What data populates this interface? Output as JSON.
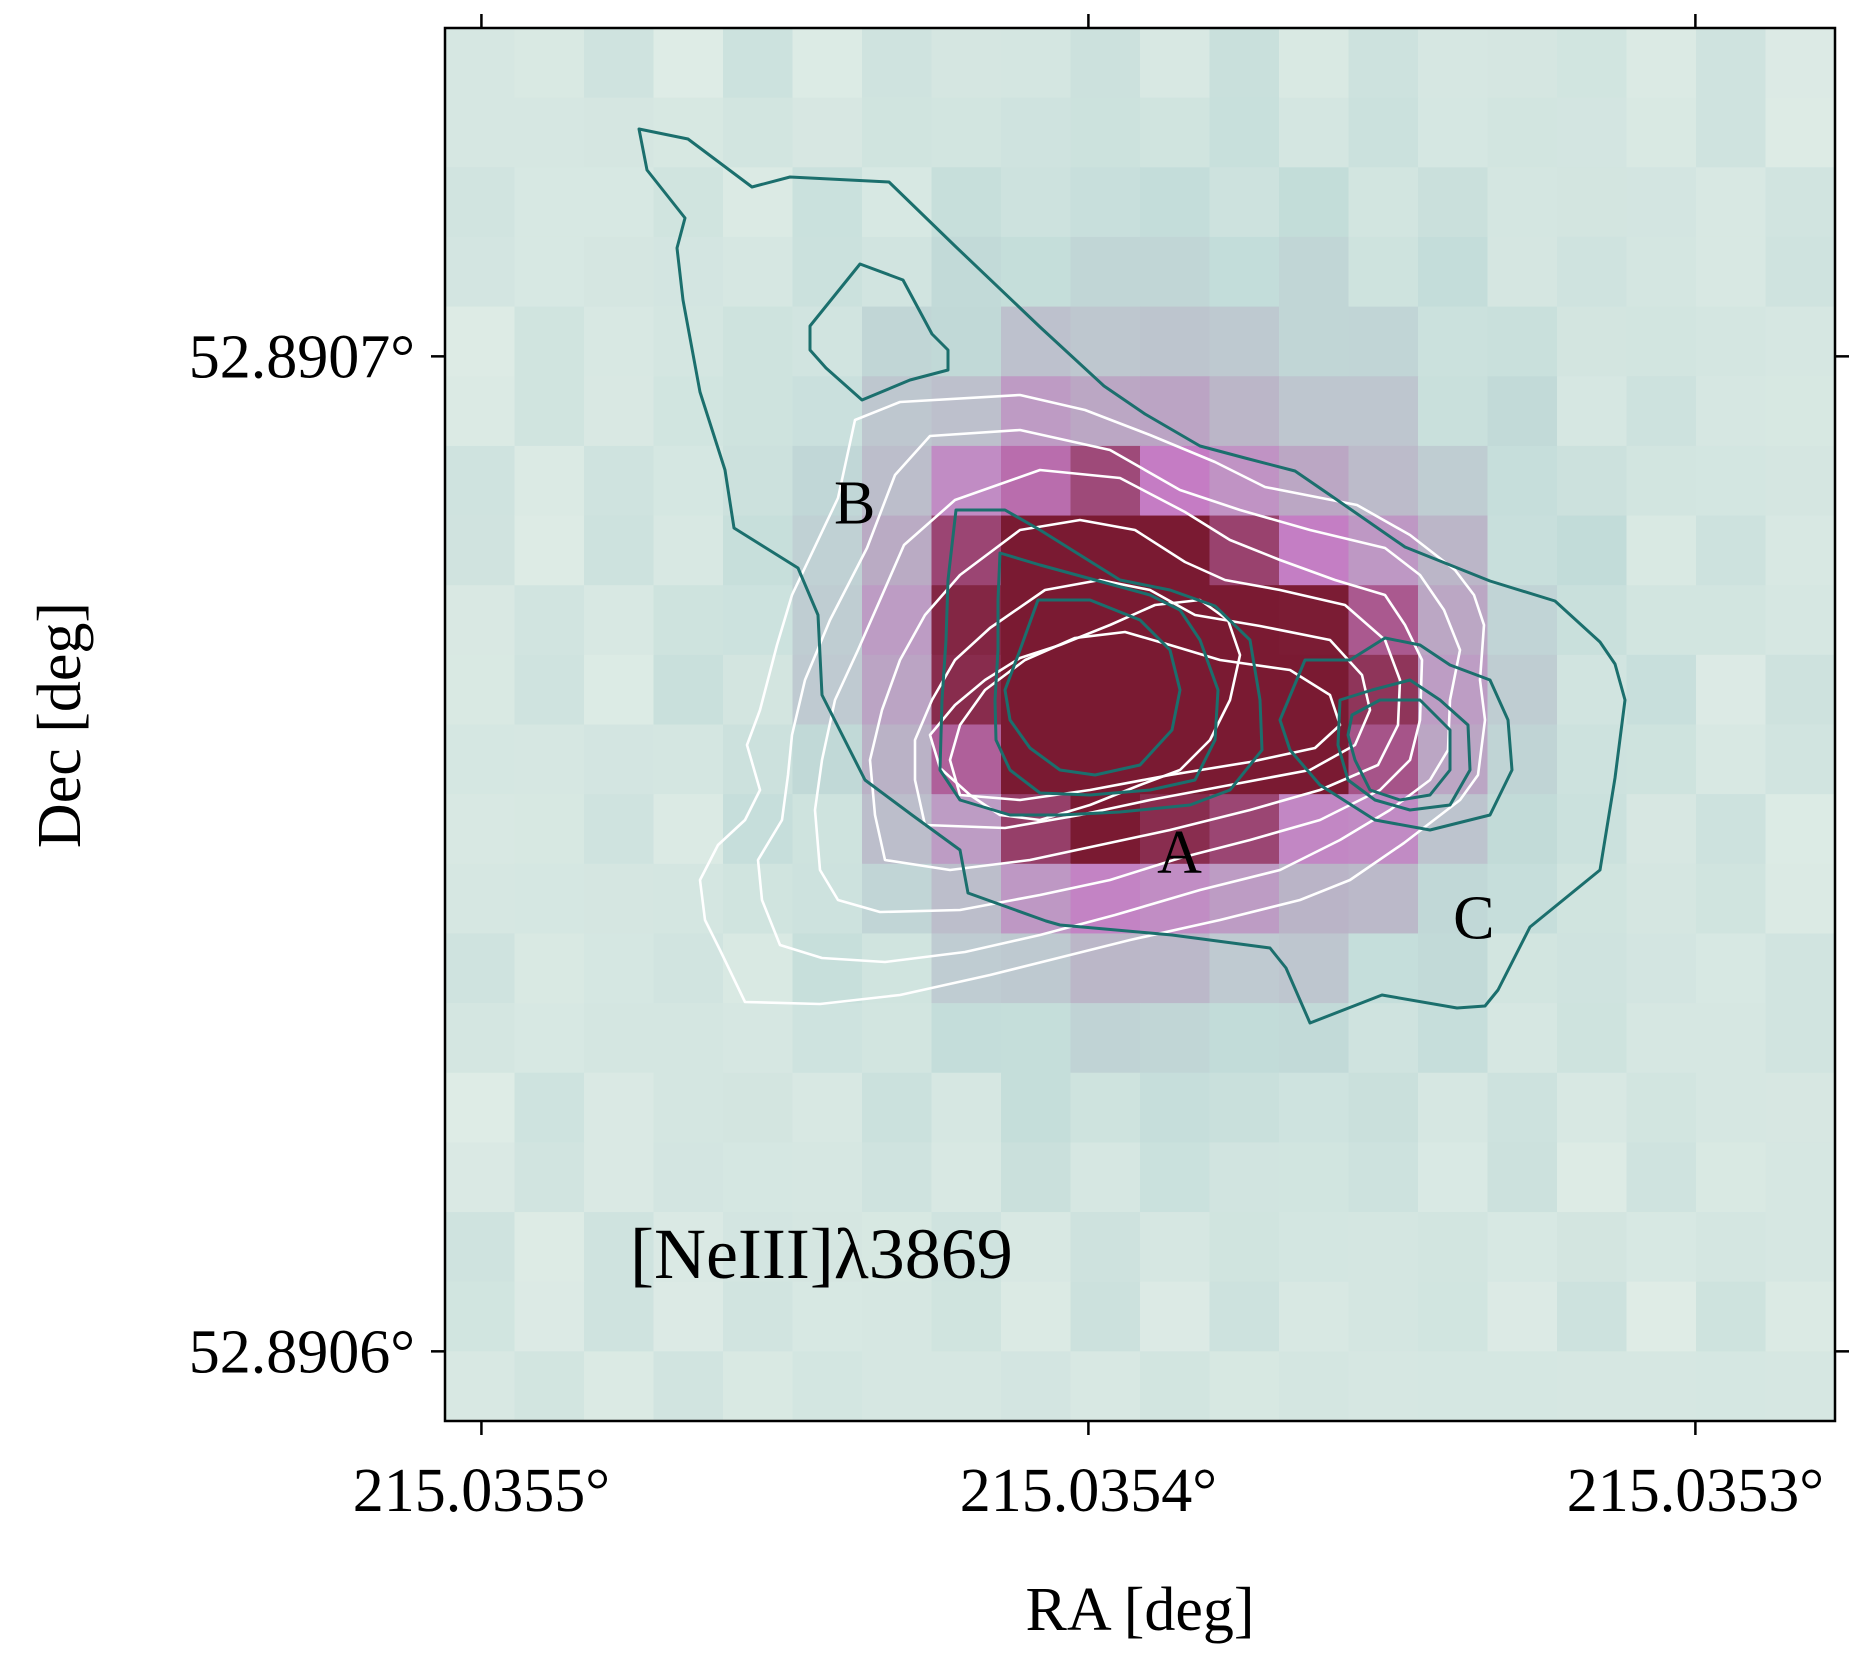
{
  "chart_data": {
    "type": "heatmap",
    "title": "",
    "panel_label": "[NeIII]λ3869",
    "xlabel": "RA [deg]",
    "ylabel": "Dec [deg]",
    "x_ticks": [
      {
        "value": 215.0355,
        "label": "215.0355°"
      },
      {
        "value": 215.0354,
        "label": "215.0354°"
      },
      {
        "value": 215.0353,
        "label": "215.0353°"
      }
    ],
    "y_ticks": [
      {
        "value": 52.8907,
        "label": "52.8907°"
      },
      {
        "value": 52.8906,
        "label": "52.8906°"
      }
    ],
    "xlim": [
      215.035506,
      215.035277
    ],
    "ylim": [
      52.890593,
      52.890733
    ],
    "x_inverted": true,
    "grid": false,
    "colormap": [
      "#e8f1ea",
      "#c2dcd9",
      "#b9aec4",
      "#c57cc4",
      "#7a1a32"
    ],
    "region_labels": [
      {
        "label": "A",
        "ra": 215.035385,
        "dec": 52.8906503
      },
      {
        "label": "B",
        "ra": 215.0354385,
        "dec": 52.8906854
      },
      {
        "label": "C",
        "ra": 215.0353365,
        "dec": 52.8906437
      }
    ],
    "emission_peaks": [
      {
        "ra": 215.035396,
        "dec": 52.8906655,
        "amp": 1.0,
        "sx": 1.8e-05,
        "sy": 1.45e-05
      },
      {
        "ra": 215.035356,
        "dec": 52.8906655,
        "amp": 0.6,
        "sx": 1.35e-05,
        "sy": 1.15e-05
      },
      {
        "ra": 215.035415,
        "dec": 52.890676,
        "amp": 0.35,
        "sx": 1.8e-05,
        "sy": 1.4e-05
      },
      {
        "ra": 215.035382,
        "dec": 52.890672,
        "amp": 0.4,
        "sx": 3.5e-05,
        "sy": 2.6e-05
      }
    ],
    "contour_colors": {
      "white": "#ffffff",
      "teal": "#1b6f6d"
    }
  }
}
